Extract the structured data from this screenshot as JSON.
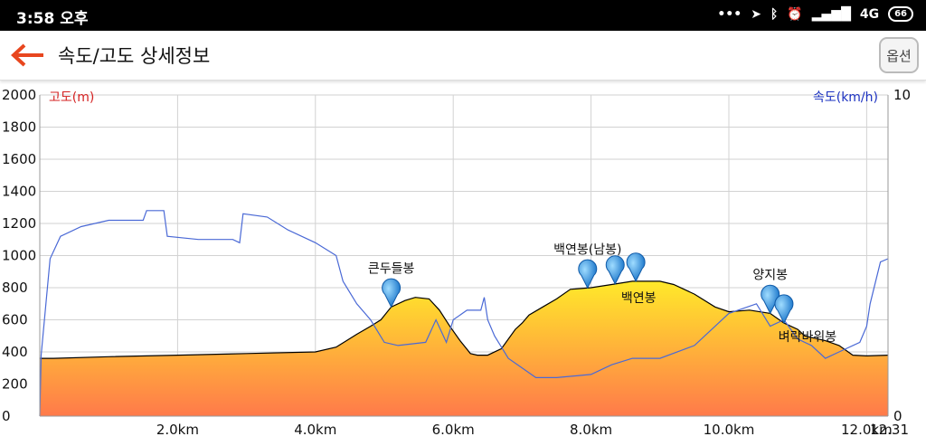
{
  "status_bar": {
    "time": "3:58 오후",
    "network": "4G",
    "battery": "66"
  },
  "app_bar": {
    "title": "속도/고도 상세정보",
    "options_label": "옵션"
  },
  "colors": {
    "back_arrow": "#e8461e",
    "speed_line": "#4a69d6",
    "elevation_top": "#ffe92a",
    "elevation_bottom": "#ff7a4a",
    "pin": "#1e90e0",
    "left_axis_title": "#d42020",
    "right_axis_title": "#1a30c0"
  },
  "chart_data": {
    "type": "area",
    "left_axis": {
      "title": "고도(m)",
      "range": [
        0,
        2000
      ],
      "ticks": [
        0,
        200,
        400,
        600,
        800,
        1000,
        1200,
        1400,
        1600,
        1800,
        2000
      ]
    },
    "right_axis": {
      "title": "속도(km/h)",
      "range": [
        0,
        10
      ],
      "ticks": [
        0,
        10
      ]
    },
    "x_axis": {
      "range": [
        0,
        12.31
      ],
      "ticks": [
        2,
        4,
        6,
        8,
        10,
        12
      ],
      "tick_labels": [
        "2.0km",
        "4.0km",
        "6.0km",
        "8.0km",
        "10.0km",
        "12.0km"
      ],
      "end_label": "12.31"
    },
    "grid": true,
    "series": [
      {
        "axis": "left",
        "x": [
          0,
          0.2,
          1,
          2,
          3,
          4,
          4.3,
          4.6,
          4.8,
          4.95,
          5.1,
          5.3,
          5.45,
          5.65,
          5.8,
          5.95,
          6.1,
          6.25,
          6.35,
          6.5,
          6.7,
          6.9,
          7.0,
          7.1,
          7.3,
          7.5,
          7.7,
          8.0,
          8.3,
          8.6,
          9.0,
          9.2,
          9.5,
          9.8,
          10.0,
          10.3,
          10.6,
          10.8,
          11.0,
          11.1,
          11.4,
          11.6,
          11.8,
          12.0,
          12.31
        ],
        "values": [
          360,
          360,
          370,
          380,
          390,
          400,
          430,
          510,
          560,
          600,
          680,
          720,
          740,
          730,
          660,
          560,
          470,
          390,
          380,
          380,
          420,
          540,
          580,
          630,
          680,
          730,
          790,
          800,
          820,
          840,
          840,
          820,
          760,
          680,
          650,
          660,
          640,
          580,
          540,
          500,
          470,
          440,
          380,
          375,
          380
        ]
      },
      {
        "axis": "right",
        "x": [
          0,
          0.02,
          0.15,
          0.3,
          0.6,
          1.0,
          1.3,
          1.5,
          1.55,
          1.8,
          1.85,
          2.3,
          2.8,
          2.9,
          2.95,
          3.3,
          3.6,
          4.0,
          4.3,
          4.4,
          4.6,
          4.8,
          5.0,
          5.2,
          5.6,
          5.75,
          5.9,
          6.0,
          6.2,
          6.4,
          6.45,
          6.5,
          6.6,
          6.8,
          7.0,
          7.2,
          7.5,
          8.0,
          8.3,
          8.6,
          9.0,
          9.5,
          10.0,
          10.4,
          10.6,
          10.8,
          11.0,
          11.2,
          11.4,
          11.6,
          11.9,
          12.0,
          12.05,
          12.2,
          12.31
        ],
        "values": [
          0,
          1.9,
          4.9,
          5.6,
          5.9,
          6.1,
          6.1,
          6.1,
          6.4,
          6.4,
          5.6,
          5.5,
          5.5,
          5.4,
          6.3,
          6.2,
          5.8,
          5.4,
          5.0,
          4.2,
          3.5,
          3.0,
          2.3,
          2.2,
          2.3,
          3.0,
          2.3,
          3.0,
          3.3,
          3.3,
          3.7,
          3.0,
          2.5,
          1.8,
          1.5,
          1.2,
          1.2,
          1.3,
          1.6,
          1.8,
          1.8,
          2.2,
          3.2,
          3.5,
          2.8,
          3.0,
          2.4,
          2.2,
          1.8,
          2.0,
          2.3,
          2.8,
          3.5,
          4.8,
          4.9
        ]
      }
    ],
    "waypoints": [
      {
        "label": "큰두들봉",
        "x": 5.1,
        "label_above": true
      },
      {
        "label": "백연봉(남봉)",
        "x": 7.95,
        "label_above": true
      },
      {
        "label": "백연봉",
        "x": 8.35,
        "label_above": false
      },
      {
        "label": "",
        "x": 8.65,
        "label_above": false
      },
      {
        "label": "양지봉",
        "x": 10.6,
        "label_above": true
      },
      {
        "label": "벼락바위봉",
        "x": 10.8,
        "label_above": false
      }
    ]
  }
}
